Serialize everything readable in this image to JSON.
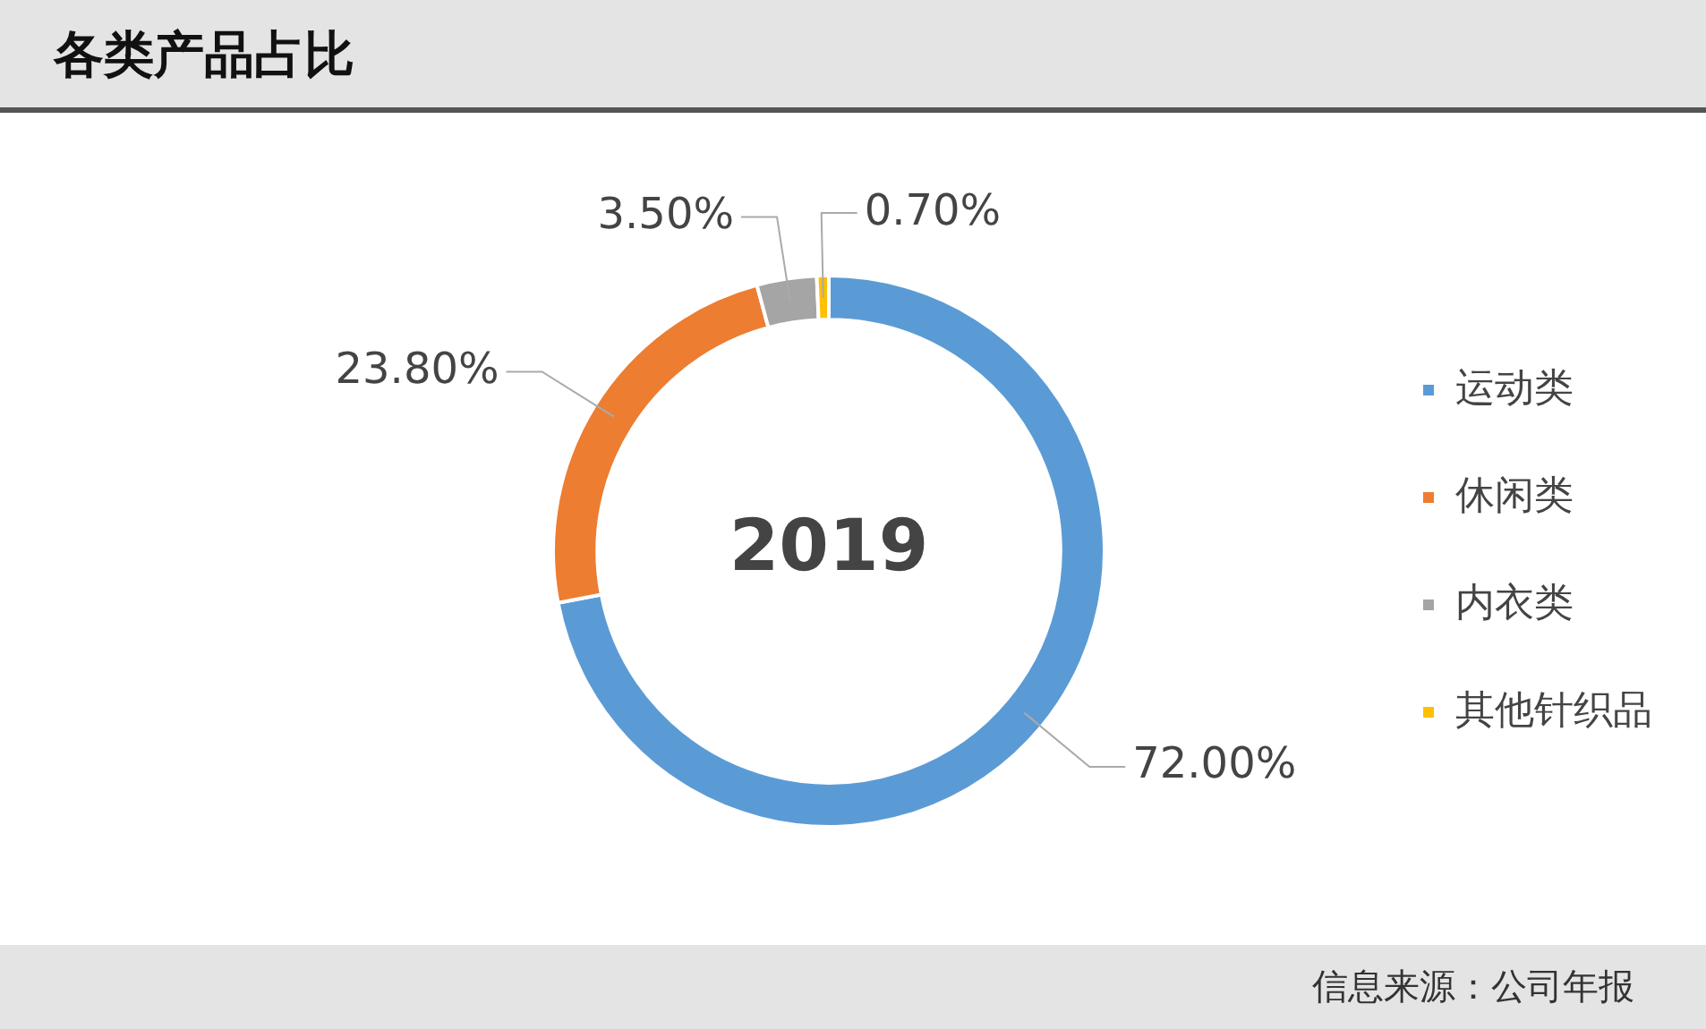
{
  "chart_data": {
    "type": "donut",
    "title": "各类产品占比",
    "categories": [
      "运动类",
      "休闲类",
      "内衣类",
      "其他针织品"
    ],
    "values": [
      72.0,
      23.8,
      3.5,
      0.7
    ],
    "colors": [
      "#5b9bd5",
      "#ed7d31",
      "#a5a5a5",
      "#ffc000"
    ],
    "value_labels": [
      "72.00%",
      "23.80%",
      "3.50%",
      "0.70%"
    ],
    "legend": "right",
    "annotations": [
      "2019",
      "信息来源：公司年报"
    ]
  }
}
